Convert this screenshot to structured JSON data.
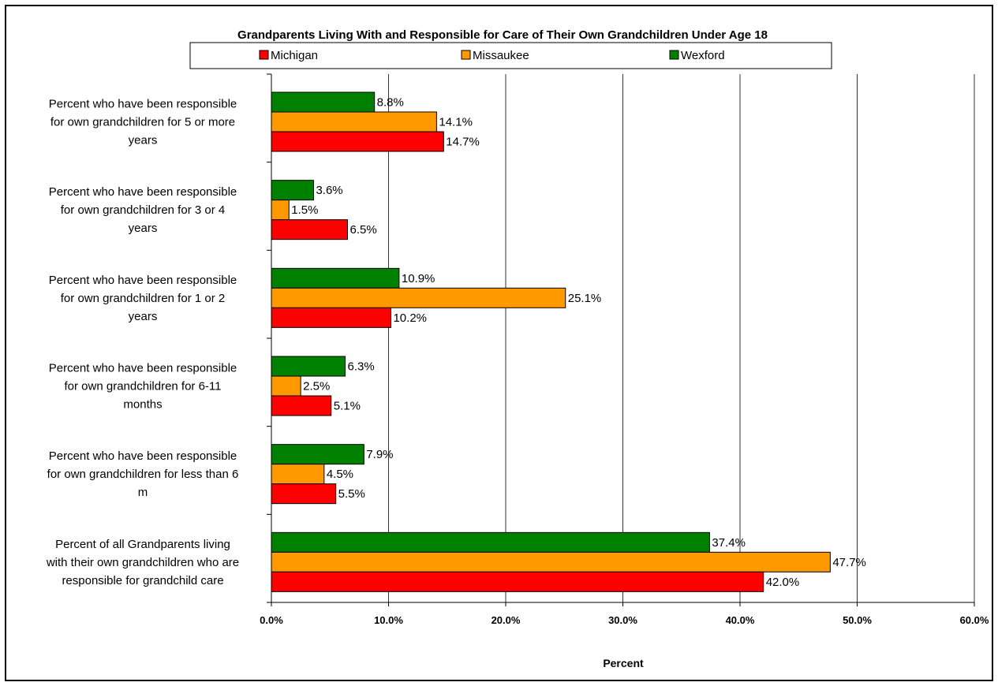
{
  "chart_data": {
    "type": "bar",
    "orientation": "horizontal",
    "title": "Grandparents Living With and Responsible for Care of Their Own Grandchildren Under Age 18",
    "xlabel": "Percent",
    "ylabel": "",
    "xlim": [
      0,
      60
    ],
    "xticks": [
      "0.0%",
      "10.0%",
      "20.0%",
      "30.0%",
      "40.0%",
      "50.0%",
      "60.0%"
    ],
    "grid": true,
    "legend_position": "top",
    "categories": [
      [
        "Percent who have been responsible",
        "for own grandchildren for 5 or more",
        "years"
      ],
      [
        "Percent who have been responsible",
        "for own grandchildren for 3 or 4",
        "years"
      ],
      [
        "Percent who have been responsible",
        "for own grandchildren for 1 or 2",
        "years"
      ],
      [
        "Percent who have been responsible",
        "for own grandchildren for 6-11",
        "months"
      ],
      [
        "Percent who have been responsible",
        "for own grandchildren for less than 6",
        "m"
      ],
      [
        "Percent of all Grandparents living",
        "with their own grandchildren who are",
        "responsible for grandchild care"
      ]
    ],
    "series": [
      {
        "name": "Michigan",
        "color": "#ff0000",
        "values": [
          14.7,
          6.5,
          10.2,
          5.1,
          5.5,
          42.0
        ],
        "labels": [
          "14.7%",
          "6.5%",
          "10.2%",
          "5.1%",
          "5.5%",
          "42.0%"
        ]
      },
      {
        "name": "Missaukee",
        "color": "#ff9900",
        "values": [
          14.1,
          1.5,
          25.1,
          2.5,
          4.5,
          47.7
        ],
        "labels": [
          "14.1%",
          "1.5%",
          "25.1%",
          "2.5%",
          "4.5%",
          "47.7%"
        ]
      },
      {
        "name": "Wexford",
        "color": "#008000",
        "values": [
          8.8,
          3.6,
          10.9,
          6.3,
          7.9,
          37.4
        ],
        "labels": [
          "8.8%",
          "3.6%",
          "10.9%",
          "6.3%",
          "7.9%",
          "37.4%"
        ]
      }
    ]
  }
}
